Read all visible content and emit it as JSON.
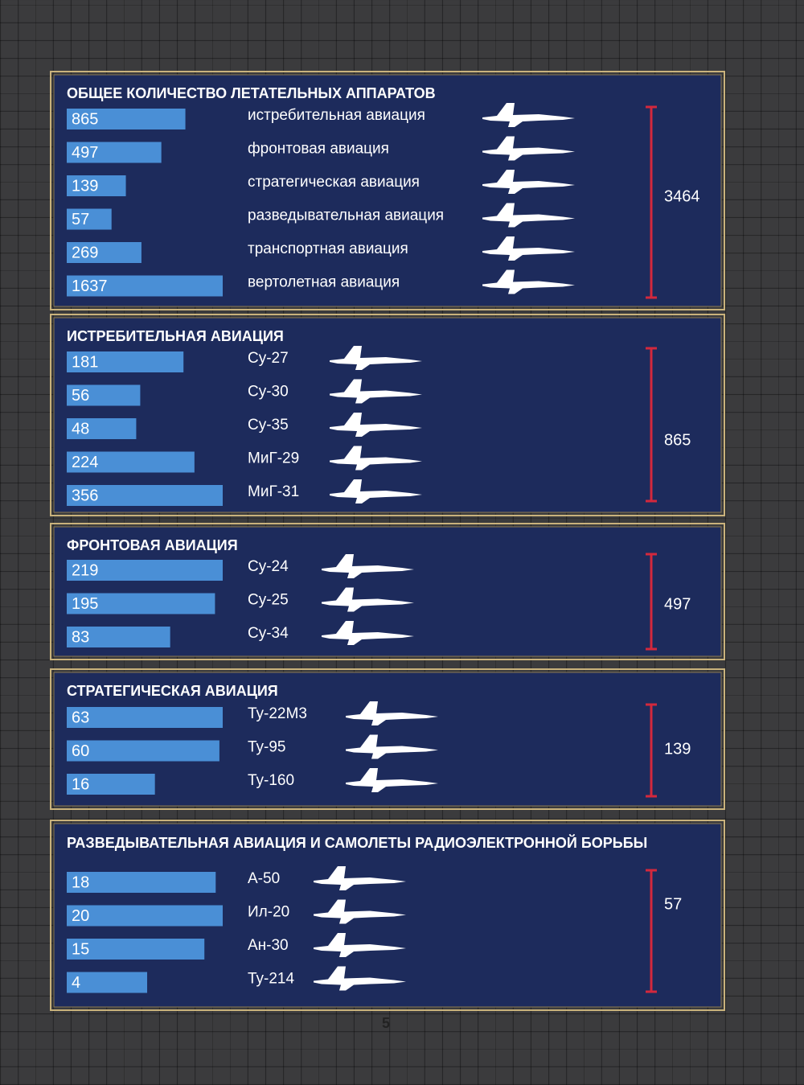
{
  "chart_data": [
    {
      "type": "bar",
      "title": "ОБЩЕЕ КОЛИЧЕСТВО ЛЕТАТЕЛЬНЫХ АППАРАТОВ",
      "categories": [
        "истребительная авиация",
        "фронтовая авиация",
        "стратегическая авиация",
        "разведывательная авиация",
        "транспортная авиация",
        "вертолетная авиация"
      ],
      "values": [
        865,
        497,
        139,
        57,
        269,
        1637
      ],
      "total": 3464,
      "color": "#4a8fd6"
    },
    {
      "type": "bar",
      "title": "ИСТРЕБИТЕЛЬНАЯ АВИАЦИЯ",
      "categories": [
        "Су-27",
        "Су-30",
        "Су-35",
        "МиГ-29",
        "МиГ-31"
      ],
      "values": [
        181,
        56,
        48,
        224,
        356
      ],
      "total": 865,
      "color": "#4a8fd6"
    },
    {
      "type": "bar",
      "title": "ФРОНТОВАЯ АВИАЦИЯ",
      "categories": [
        "Су-24",
        "Су-25",
        "Су-34"
      ],
      "values": [
        219,
        195,
        83
      ],
      "total": 497,
      "color": "#4a8fd6"
    },
    {
      "type": "bar",
      "title": "СТРАТЕГИЧЕСКАЯ  АВИАЦИЯ",
      "categories": [
        "Ту-22М3",
        "Ту-95",
        "Ту-160"
      ],
      "values": [
        63,
        60,
        16
      ],
      "total": 139,
      "color": "#4a8fd6"
    },
    {
      "type": "bar",
      "title": "РАЗВЕДЫВАТЕЛЬНАЯ АВИАЦИЯ И САМОЛЕТЫ РАДИОЭЛЕКТРОННОЙ БОРЬБЫ",
      "categories": [
        "А-50",
        "Ил-20",
        "Ан-30",
        "Ту-214"
      ],
      "values": [
        18,
        20,
        15,
        4
      ],
      "total": 57,
      "color": "#4a8fd6"
    }
  ],
  "page_number": "5"
}
